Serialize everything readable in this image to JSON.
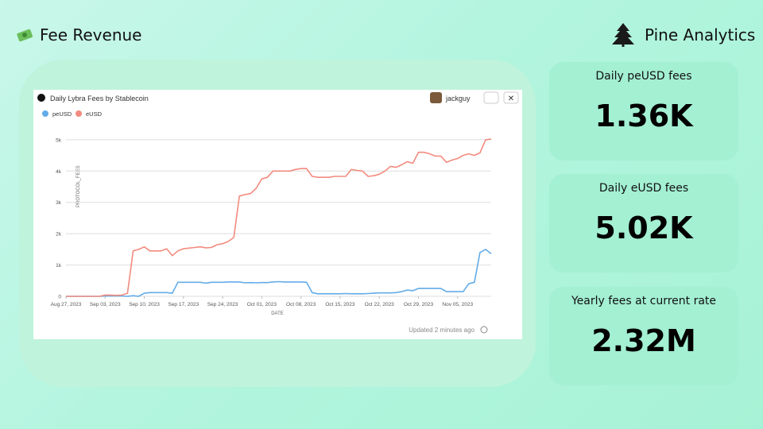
{
  "header": {
    "title": "Fee Revenue",
    "brand": "Pine Analytics"
  },
  "stats": [
    {
      "label": "Daily peUSD fees",
      "value": "1.36K"
    },
    {
      "label": "Daily eUSD fees",
      "value": "5.02K"
    },
    {
      "label": "Yearly fees at current rate",
      "value": "2.32M"
    }
  ],
  "chart_data": {
    "type": "line",
    "title": "Daily Lybra Fees by Stablecoin",
    "author": "jackguy",
    "updated": "Updated 2 minutes ago",
    "xlabel": "DATE",
    "ylabel": "PROTOCOL_FEES",
    "x": [
      "2023-08-27",
      "2023-08-28",
      "2023-08-29",
      "2023-08-30",
      "2023-08-31",
      "2023-09-01",
      "2023-09-02",
      "2023-09-03",
      "2023-09-04",
      "2023-09-05",
      "2023-09-06",
      "2023-09-07",
      "2023-09-08",
      "2023-09-09",
      "2023-09-10",
      "2023-09-11",
      "2023-09-12",
      "2023-09-13",
      "2023-09-14",
      "2023-09-15",
      "2023-09-16",
      "2023-09-17",
      "2023-09-18",
      "2023-09-19",
      "2023-09-20",
      "2023-09-21",
      "2023-09-22",
      "2023-09-23",
      "2023-09-24",
      "2023-09-25",
      "2023-09-26",
      "2023-09-27",
      "2023-09-28",
      "2023-09-29",
      "2023-09-30",
      "2023-10-01",
      "2023-10-02",
      "2023-10-03",
      "2023-10-04",
      "2023-10-05",
      "2023-10-06",
      "2023-10-07",
      "2023-10-08",
      "2023-10-09",
      "2023-10-10",
      "2023-10-11",
      "2023-10-12",
      "2023-10-13",
      "2023-10-14",
      "2023-10-15",
      "2023-10-16",
      "2023-10-17",
      "2023-10-18",
      "2023-10-19",
      "2023-10-20",
      "2023-10-21",
      "2023-10-22",
      "2023-10-23",
      "2023-10-24",
      "2023-10-25",
      "2023-10-26",
      "2023-10-27",
      "2023-10-28",
      "2023-10-29",
      "2023-10-30",
      "2023-10-31",
      "2023-11-01",
      "2023-11-02",
      "2023-11-03",
      "2023-11-04",
      "2023-11-05",
      "2023-11-06",
      "2023-11-07",
      "2023-11-08",
      "2023-11-09",
      "2023-11-10",
      "2023-11-11"
    ],
    "series": [
      {
        "name": "peUSD",
        "color": "#63ace8",
        "values": [
          0,
          0,
          0,
          0,
          0,
          0,
          0,
          10,
          10,
          10,
          10,
          0,
          20,
          0,
          100,
          120,
          120,
          120,
          120,
          100,
          450,
          450,
          450,
          450,
          450,
          420,
          450,
          450,
          450,
          460,
          460,
          460,
          430,
          440,
          430,
          440,
          440,
          460,
          470,
          460,
          460,
          460,
          460,
          450,
          120,
          80,
          80,
          80,
          80,
          80,
          90,
          80,
          80,
          80,
          90,
          100,
          110,
          110,
          110,
          120,
          150,
          200,
          180,
          250,
          250,
          250,
          250,
          250,
          150,
          150,
          150,
          150,
          400,
          450,
          1400,
          1500,
          1360
        ]
      },
      {
        "name": "eUSD",
        "color": "#f28b7f",
        "values": [
          0,
          0,
          0,
          0,
          0,
          0,
          0,
          40,
          40,
          30,
          40,
          100,
          1450,
          1500,
          1580,
          1450,
          1450,
          1450,
          1520,
          1300,
          1450,
          1520,
          1540,
          1560,
          1580,
          1550,
          1560,
          1650,
          1680,
          1750,
          1880,
          3200,
          3250,
          3280,
          3450,
          3750,
          3800,
          4000,
          4000,
          4000,
          4000,
          4050,
          4080,
          4080,
          3830,
          3800,
          3800,
          3800,
          3830,
          3830,
          3830,
          4050,
          4020,
          4000,
          3830,
          3850,
          3900,
          4000,
          4150,
          4120,
          4200,
          4300,
          4250,
          4600,
          4600,
          4550,
          4480,
          4480,
          4280,
          4350,
          4400,
          4500,
          4550,
          4500,
          4580,
          5000,
          5020
        ]
      }
    ],
    "xticks": [
      {
        "value": "2023-08-27",
        "label": "Aug 27, 2023"
      },
      {
        "value": "2023-09-03",
        "label": "Sep 03, 2023"
      },
      {
        "value": "2023-09-10",
        "label": "Sep 10, 2023"
      },
      {
        "value": "2023-09-17",
        "label": "Sep 17, 2023"
      },
      {
        "value": "2023-09-24",
        "label": "Sep 24, 2023"
      },
      {
        "value": "2023-10-01",
        "label": "Oct 01, 2023"
      },
      {
        "value": "2023-10-08",
        "label": "Oct 08, 2023"
      },
      {
        "value": "2023-10-15",
        "label": "Oct 15, 2023"
      },
      {
        "value": "2023-10-22",
        "label": "Oct 22, 2023"
      },
      {
        "value": "2023-10-29",
        "label": "Oct 29, 2023"
      },
      {
        "value": "2023-11-05",
        "label": "Nov 05, 2023"
      }
    ],
    "ylim": [
      0,
      5200
    ],
    "yticks": [
      0,
      {
        "value": 1000,
        "label": "1k"
      },
      {
        "value": 2000,
        "label": "2k"
      },
      {
        "value": 3000,
        "label": "3k"
      },
      {
        "value": 4000,
        "label": "4k"
      },
      {
        "value": 5000,
        "label": "5k"
      }
    ],
    "grid": true,
    "legend": "top-left"
  }
}
